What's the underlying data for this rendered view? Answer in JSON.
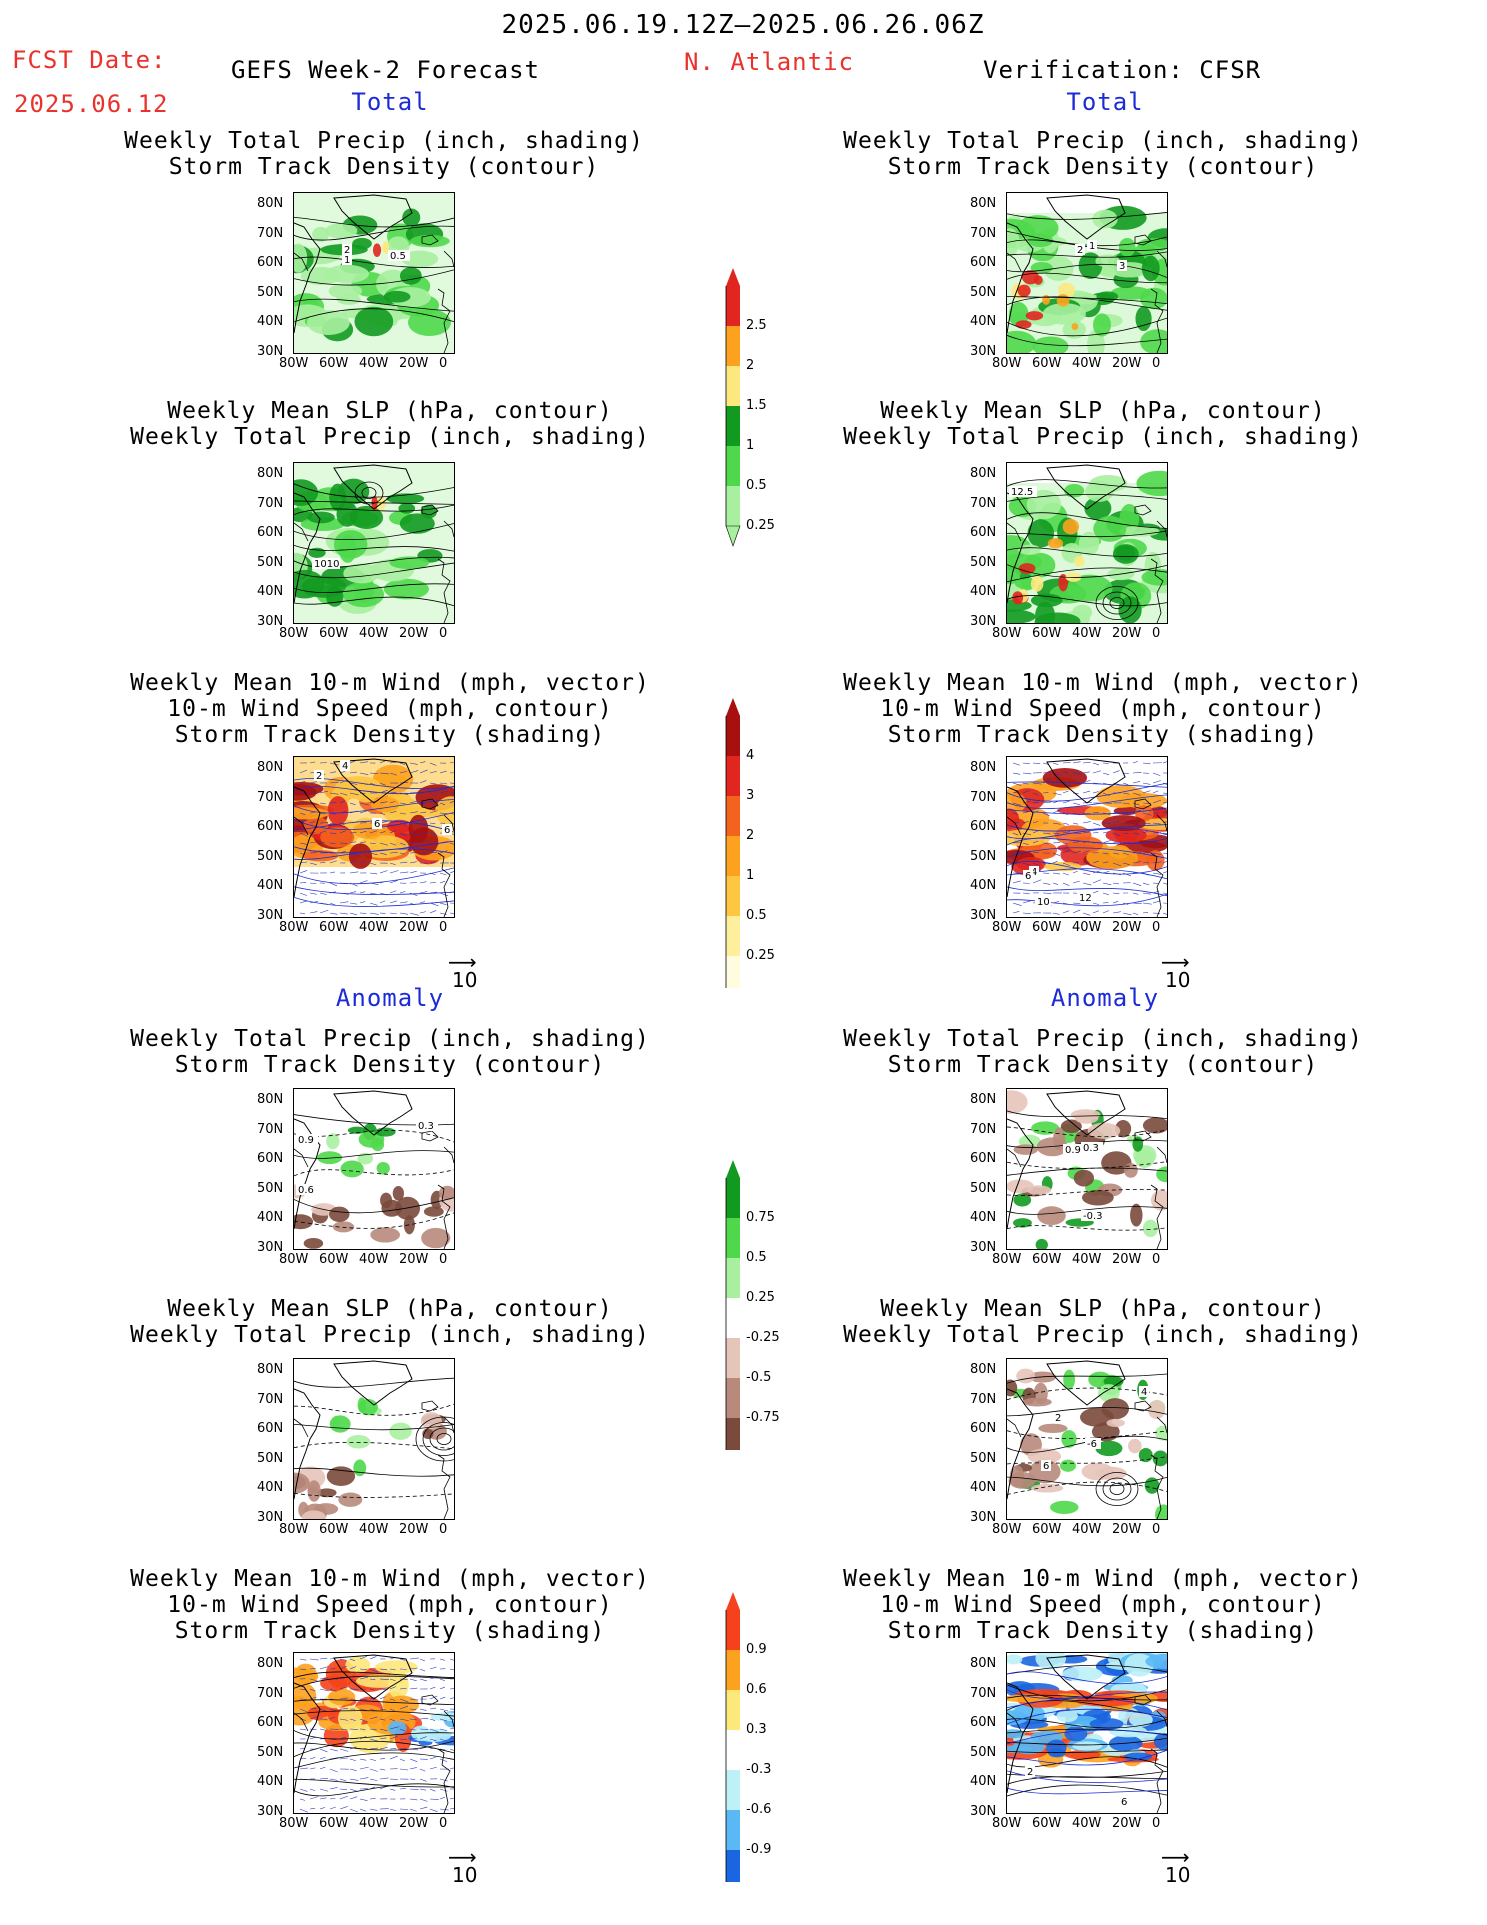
{
  "header": {
    "period": "2025.06.19.12Z–2025.06.26.06Z",
    "fcst_label": "FCST Date:",
    "fcst_date": "2025.06.12",
    "left_title": "GEFS Week-2 Forecast",
    "region": "N. Atlantic",
    "right_title": "Verification: CFSR"
  },
  "sections": {
    "total": "Total",
    "anomaly": "Anomaly"
  },
  "panel_titles": {
    "precip_track": [
      "Weekly Total Precip (inch, shading)",
      "Storm Track Density (contour)"
    ],
    "slp_precip": [
      "Weekly Mean SLP (hPa, contour)",
      "Weekly Total Precip (inch, shading)"
    ],
    "wind_track": [
      "Weekly Mean 10-m Wind (mph, vector)",
      "10-m Wind Speed (mph, contour)",
      "Storm Track Density (shading)"
    ]
  },
  "axes": {
    "lat_ticks": [
      "80N",
      "70N",
      "60N",
      "50N",
      "40N",
      "30N"
    ],
    "lon_ticks": [
      "80W",
      "60W",
      "40W",
      "20W",
      "0"
    ]
  },
  "vector_scale": "10",
  "colorbars": {
    "precip_total": {
      "labels": [
        "2.5",
        "2",
        "1.5",
        "1",
        "0.5",
        "0.25"
      ],
      "colors": [
        "#e0261f",
        "#fda21e",
        "#fde880",
        "#129a20",
        "#4fd84b",
        "#a8f0a0"
      ]
    },
    "track_total": {
      "labels": [
        "4",
        "3",
        "2",
        "1",
        "0.5",
        "0.25"
      ],
      "colors": [
        "#a80f0f",
        "#e0261f",
        "#f4631d",
        "#fda21e",
        "#fdc742",
        "#fdef9c",
        "#fffce0"
      ]
    },
    "precip_anom": {
      "labels": [
        "0.75",
        "0.5",
        "0.25",
        "-0.25",
        "-0.5",
        "-0.75"
      ],
      "colors": [
        "#129a20",
        "#4fd84b",
        "#a8f0a0",
        "#ffffff",
        "#e5c4b9",
        "#b88a7c",
        "#7a4a3c"
      ]
    },
    "track_anom": {
      "labels": [
        "0.9",
        "0.6",
        "0.3",
        "-0.3",
        "-0.6",
        "-0.9"
      ],
      "colors": [
        "#f5421c",
        "#fda21e",
        "#fde87a",
        "#ffffff",
        "#bdf0f7",
        "#5ab8f5",
        "#1a66e0"
      ]
    }
  },
  "contour_labels": {
    "p1": [
      "2",
      "1",
      "0.5"
    ],
    "p2": [
      "1010"
    ],
    "p3": [
      "2",
      "4",
      "6",
      "6"
    ],
    "p4": [
      "0.9",
      "0.6",
      "0.3"
    ],
    "p7": [
      "2",
      "1",
      "3"
    ],
    "p8": [
      "12.5"
    ],
    "p9": [
      "4",
      "6",
      "10",
      "12"
    ],
    "p10": [
      "0.9",
      "0.3",
      "-0.3"
    ],
    "p11": [
      "2",
      "-6",
      "6",
      "4"
    ],
    "p12": [
      "2",
      "6"
    ]
  }
}
